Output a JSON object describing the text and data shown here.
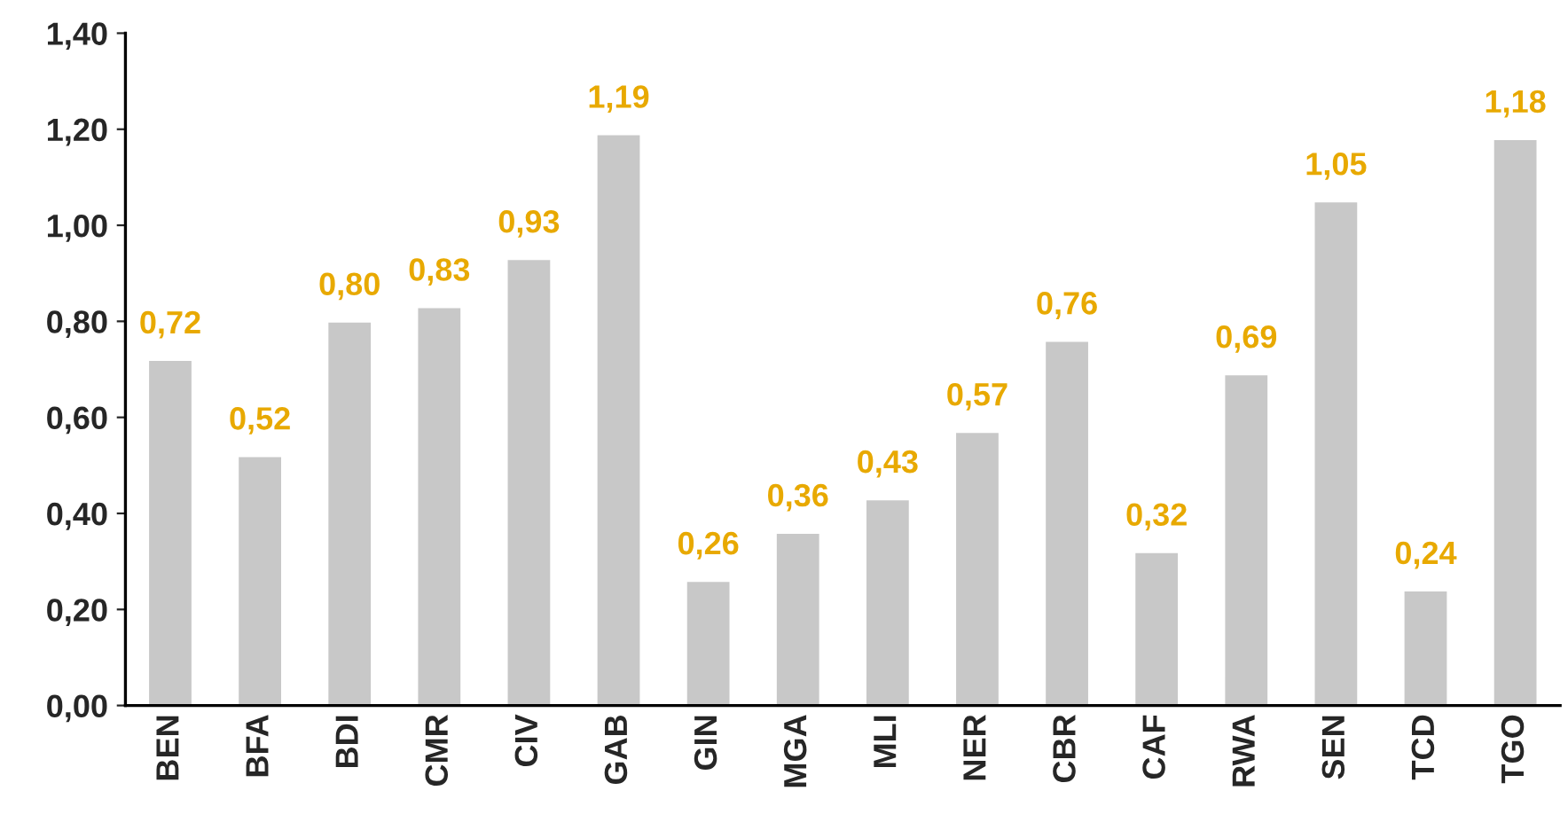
{
  "chart_data": {
    "type": "bar",
    "categories": [
      "BEN",
      "BFA",
      "BDI",
      "CMR",
      "CIV",
      "GAB",
      "GIN",
      "MGA",
      "MLI",
      "NER",
      "CBR",
      "CAF",
      "RWA",
      "SEN",
      "TCD",
      "TGO"
    ],
    "values": [
      0.72,
      0.52,
      0.8,
      0.83,
      0.93,
      1.19,
      0.26,
      0.36,
      0.43,
      0.57,
      0.76,
      0.32,
      0.69,
      1.05,
      0.24,
      1.18
    ],
    "value_labels": [
      "0,72",
      "0,52",
      "0,80",
      "0,83",
      "0,93",
      "1,19",
      "0,26",
      "0,36",
      "0,43",
      "0,57",
      "0,76",
      "0,32",
      "0,69",
      "1,05",
      "0,24",
      "1,18"
    ],
    "color": "#c8c8c8",
    "ylim": [
      0,
      1.4
    ],
    "yticks": [
      {
        "value": 0,
        "label": "0,00"
      },
      {
        "value": 0.2,
        "label": "0,20"
      },
      {
        "value": 0.4,
        "label": "0,40"
      },
      {
        "value": 0.6,
        "label": "0,60"
      },
      {
        "value": 0.8,
        "label": "0,80"
      },
      {
        "value": 1.0,
        "label": "1,00"
      },
      {
        "value": 1.2,
        "label": "1,20"
      },
      {
        "value": 1.4,
        "label": "1,40"
      }
    ],
    "grid": false
  }
}
